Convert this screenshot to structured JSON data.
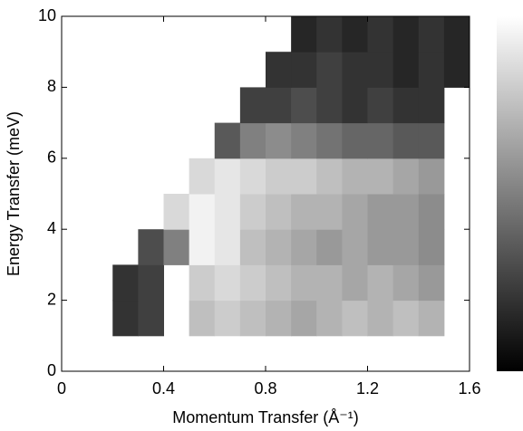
{
  "chart_data": {
    "type": "heatmap",
    "xlabel": "Momentum Transfer (Å⁻¹)",
    "ylabel": "Energy Transfer (meV)",
    "x_bins": [
      0.1,
      0.2,
      0.3,
      0.4,
      0.5,
      0.6,
      0.7,
      0.8,
      0.9,
      1.0,
      1.1,
      1.2,
      1.3,
      1.4,
      1.5,
      1.6
    ],
    "y_bins": [
      1,
      2,
      3,
      4,
      5,
      6,
      7,
      8,
      9,
      10
    ],
    "values": [
      [
        null,
        0.2,
        0.25,
        null,
        0.75,
        0.8,
        0.75,
        0.7,
        0.65,
        0.7,
        0.75,
        0.7,
        0.75,
        0.7,
        null
      ],
      [
        null,
        0.2,
        0.25,
        null,
        0.8,
        0.85,
        0.8,
        0.75,
        0.7,
        0.7,
        0.65,
        0.7,
        0.65,
        0.6,
        null
      ],
      [
        null,
        null,
        0.3,
        0.5,
        0.95,
        0.9,
        0.75,
        0.7,
        0.65,
        0.6,
        0.65,
        0.6,
        0.6,
        0.55,
        null
      ],
      [
        null,
        null,
        null,
        0.85,
        0.95,
        0.9,
        0.8,
        0.75,
        0.7,
        0.7,
        0.65,
        0.6,
        0.6,
        0.55,
        null
      ],
      [
        null,
        null,
        null,
        null,
        0.85,
        0.9,
        0.85,
        0.8,
        0.8,
        0.75,
        0.7,
        0.7,
        0.65,
        0.6,
        null
      ],
      [
        null,
        null,
        null,
        null,
        null,
        0.35,
        0.5,
        0.55,
        0.5,
        0.45,
        0.4,
        0.4,
        0.35,
        0.35,
        null
      ],
      [
        null,
        null,
        null,
        null,
        null,
        null,
        0.25,
        0.25,
        0.3,
        0.25,
        0.2,
        0.25,
        0.2,
        0.2,
        null
      ],
      [
        null,
        null,
        null,
        null,
        null,
        null,
        null,
        0.2,
        0.2,
        0.25,
        0.2,
        0.2,
        0.15,
        0.2,
        0.15
      ],
      [
        null,
        null,
        null,
        null,
        null,
        null,
        null,
        null,
        0.15,
        0.2,
        0.15,
        0.2,
        0.15,
        0.2,
        0.15
      ]
    ],
    "zlim": [
      0,
      1
    ],
    "colormap": "gray",
    "colorbar": true,
    "xlim": [
      0,
      1.6
    ],
    "xticks": [
      0,
      0.4,
      0.8,
      1.2,
      1.6
    ],
    "ylim": [
      0,
      10
    ],
    "yticks": [
      0,
      2,
      4,
      6,
      8,
      10
    ]
  }
}
